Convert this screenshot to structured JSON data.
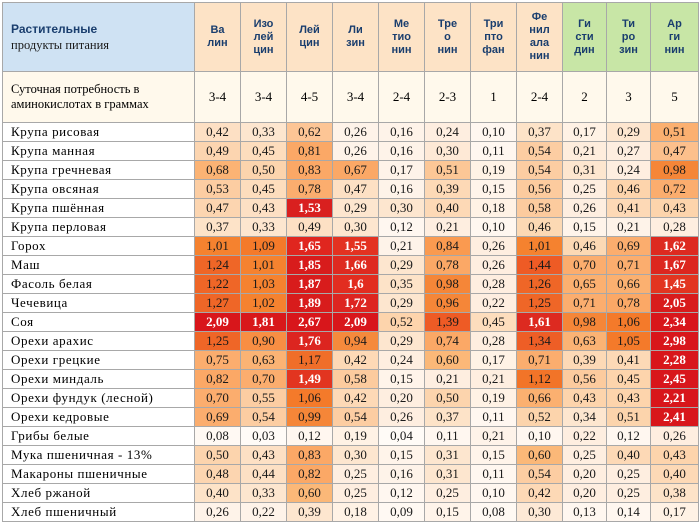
{
  "header": {
    "title_line1": "Растительные",
    "title_line2": "продукты питания",
    "columns": [
      {
        "name": "Ва лин",
        "lines": [
          "Ва",
          "лин"
        ],
        "bg": "#fde3c6"
      },
      {
        "name": "Изо лей цин",
        "lines": [
          "Изо",
          "лей",
          "цин"
        ],
        "bg": "#fde3c6"
      },
      {
        "name": "Лей цин",
        "lines": [
          "Лей",
          "цин"
        ],
        "bg": "#fde3c6"
      },
      {
        "name": "Ли зин",
        "lines": [
          "Ли",
          "зин"
        ],
        "bg": "#fde3c6"
      },
      {
        "name": "Ме тио нин",
        "lines": [
          "Ме",
          "тио",
          "нин"
        ],
        "bg": "#fde3c6"
      },
      {
        "name": "Тре о нин",
        "lines": [
          "Тре",
          "о",
          "нин"
        ],
        "bg": "#fde3c6"
      },
      {
        "name": "Три пто фан",
        "lines": [
          "Три",
          "пто",
          "фан"
        ],
        "bg": "#fde3c6"
      },
      {
        "name": "Фе нил ала нин",
        "lines": [
          "Фе",
          "нил",
          "ала",
          "нин"
        ],
        "bg": "#fde3c6"
      },
      {
        "name": "Ги сти дин",
        "lines": [
          "Ги",
          "сти",
          "дин"
        ],
        "bg": "#c8e6a6"
      },
      {
        "name": "Ти ро зин",
        "lines": [
          "Ти",
          "ро",
          "зин"
        ],
        "bg": "#c8e6a6"
      },
      {
        "name": "Ар ги нин",
        "lines": [
          "Ар",
          "ги",
          "нин"
        ],
        "bg": "#c8e6a6"
      }
    ]
  },
  "need": {
    "label": "Суточная потребность в аминокислотах в граммах",
    "values": [
      "3-4",
      "3-4",
      "4-5",
      "3-4",
      "2-4",
      "2-3",
      "1",
      "2-4",
      "2",
      "3",
      "5"
    ]
  },
  "rows": [
    {
      "name": "Крупа рисовая",
      "values": [
        "0,42",
        "0,33",
        "0,62",
        "0,26",
        "0,16",
        "0,24",
        "0,10",
        "0,37",
        "0,17",
        "0,29",
        "0,51"
      ],
      "colors": [
        "#fde0c4",
        "#fde6cf",
        "#fdc595",
        "#fef3e9",
        "#fef3e9",
        "#feeee0",
        "#fff7f0",
        "#fde3c8",
        "#fff2e5",
        "#fde6cf",
        "#fbb070"
      ]
    },
    {
      "name": "Крупа манная",
      "values": [
        "0,49",
        "0,45",
        "0,81",
        "0,26",
        "0,16",
        "0,30",
        "0,11",
        "0,54",
        "0,21",
        "0,27",
        "0,47"
      ],
      "colors": [
        "#fcd5b0",
        "#fdddbd",
        "#fba866",
        "#fef3e9",
        "#fef3e9",
        "#fee9d6",
        "#fff7f0",
        "#fccda2",
        "#feeddd",
        "#feeee0",
        "#fcc08c"
      ]
    },
    {
      "name": "Крупа гречневая",
      "values": [
        "0,68",
        "0,50",
        "0,83",
        "0,67",
        "0,17",
        "0,51",
        "0,19",
        "0,54",
        "0,31",
        "0,24",
        "0,98"
      ],
      "colors": [
        "#fbb374",
        "#fcd4ad",
        "#fba866",
        "#fba866",
        "#fef3e9",
        "#fcc796",
        "#fff2e5",
        "#fccda2",
        "#fde6cf",
        "#feeee0",
        "#f58638"
      ]
    },
    {
      "name": "Крупа овсяная",
      "values": [
        "0,53",
        "0,45",
        "0,78",
        "0,47",
        "0,16",
        "0,39",
        "0,15",
        "0,56",
        "0,25",
        "0,46",
        "0,72"
      ],
      "colors": [
        "#fccda2",
        "#fdddbd",
        "#fbad6e",
        "#fde0c4",
        "#fef3e9",
        "#fdd9b6",
        "#fff4ea",
        "#fccb9e",
        "#feeee0",
        "#fdd4ac",
        "#fbad6e"
      ]
    },
    {
      "name": "Крупа пшённая",
      "values": [
        "0,47",
        "0,43",
        "1,53",
        "0,29",
        "0,30",
        "0,40",
        "0,18",
        "0,58",
        "0,26",
        "0,41",
        "0,43"
      ],
      "colors": [
        "#fcd5b0",
        "#fde0c4",
        "#d9201f",
        "#fde6cf",
        "#fde6cf",
        "#fdd9b6",
        "#fff2e5",
        "#fccb9e",
        "#feeee0",
        "#fdd9b6",
        "#fdd4ac"
      ]
    },
    {
      "name": "Крупа перловая",
      "values": [
        "0,37",
        "0,33",
        "0,49",
        "0,30",
        "0,12",
        "0,21",
        "0,10",
        "0,46",
        "0,15",
        "0,21",
        "0,28"
      ],
      "colors": [
        "#fde3c8",
        "#fde6cf",
        "#fde0c4",
        "#fde6cf",
        "#fff7f0",
        "#feeee0",
        "#fff7f0",
        "#fcd9b4",
        "#fff4ea",
        "#fef3e9",
        "#feeee0"
      ]
    },
    {
      "name": "Горох",
      "values": [
        "1,01",
        "1,09",
        "1,65",
        "1,55",
        "0,21",
        "0,84",
        "0,26",
        "1,01",
        "0,46",
        "0,69",
        "1,62"
      ],
      "colors": [
        "#f5822f",
        "#f47a2a",
        "#e0261f",
        "#e33221",
        "#fef3e9",
        "#fa9a50",
        "#feeee0",
        "#f5822f",
        "#fcd9b4",
        "#fbad6e",
        "#dd2a20"
      ]
    },
    {
      "name": "Маш",
      "values": [
        "1,24",
        "1,01",
        "1,85",
        "1,66",
        "0,29",
        "0,78",
        "0,26",
        "1,44",
        "0,70",
        "0,71",
        "1,67"
      ],
      "colors": [
        "#ef6627",
        "#f5822f",
        "#d81c1c",
        "#de2a20",
        "#fde6cf",
        "#fba866",
        "#feeee0",
        "#ee5b25",
        "#fbad6e",
        "#fbad6e",
        "#dc261f"
      ]
    },
    {
      "name": "Фасоль белая",
      "values": [
        "1,22",
        "1,03",
        "1,87",
        "1,6",
        "0,35",
        "0,98",
        "0,28",
        "1,26",
        "0,65",
        "0,66",
        "1,45"
      ],
      "colors": [
        "#ef6627",
        "#f5822f",
        "#d81c1c",
        "#e22d20",
        "#fde3c8",
        "#f58638",
        "#feeee0",
        "#ef6627",
        "#fbb070",
        "#fbb070",
        "#e23520"
      ]
    },
    {
      "name": "Чечевица",
      "values": [
        "1,27",
        "1,02",
        "1,89",
        "1,72",
        "0,29",
        "0,96",
        "0,22",
        "1,25",
        "0,71",
        "0,78",
        "2,05"
      ],
      "colors": [
        "#ef6627",
        "#f5822f",
        "#d81c1c",
        "#dd2520",
        "#fde6cf",
        "#f58638",
        "#feeee0",
        "#ef6627",
        "#fbad6e",
        "#fba866",
        "#d81c1c"
      ]
    },
    {
      "name": "Соя",
      "values": [
        "2,09",
        "1,81",
        "2,67",
        "2,09",
        "0,52",
        "1,39",
        "0,45",
        "1,61",
        "0,98",
        "1,06",
        "2,34"
      ],
      "colors": [
        "#d8161b",
        "#d8181b",
        "#d8161b",
        "#d8161b",
        "#fdd4ac",
        "#ee5b25",
        "#fdddbd",
        "#dd2a20",
        "#f58638",
        "#f47a2a",
        "#d8161b"
      ]
    },
    {
      "name": "Орехи арахис",
      "values": [
        "1,25",
        "0,90",
        "1,76",
        "0,94",
        "0,29",
        "0,74",
        "0,28",
        "1,34",
        "0,63",
        "1,05",
        "2,98"
      ],
      "colors": [
        "#ef6627",
        "#f88e43",
        "#dc2520",
        "#f58a3c",
        "#fde6cf",
        "#fba866",
        "#feeee0",
        "#ee5e26",
        "#fbb374",
        "#f47a2a",
        "#d8161b"
      ]
    },
    {
      "name": "Орехи грецкие",
      "values": [
        "0,75",
        "0,63",
        "1,17",
        "0,42",
        "0,24",
        "0,60",
        "0,17",
        "0,71",
        "0,39",
        "0,41",
        "2,28"
      ],
      "colors": [
        "#fbad6e",
        "#fbb374",
        "#f06e29",
        "#fdd9b6",
        "#feeee0",
        "#fbb878",
        "#fff2e5",
        "#fbad6e",
        "#fdd9b6",
        "#fdd9b6",
        "#d8161b"
      ]
    },
    {
      "name": "Орехи миндаль",
      "values": [
        "0,82",
        "0,70",
        "1,49",
        "0,58",
        "0,15",
        "0,21",
        "0,21",
        "1,12",
        "0,56",
        "0,45",
        "2,45"
      ],
      "colors": [
        "#fba866",
        "#fbad6e",
        "#e23520",
        "#fccb9e",
        "#fff4ea",
        "#feeee0",
        "#feeee0",
        "#f27428",
        "#fccb9e",
        "#fdd4ac",
        "#d8161b"
      ]
    },
    {
      "name": "Орехи фундук (лесной)",
      "values": [
        "0,70",
        "0,55",
        "1,06",
        "0,42",
        "0,20",
        "0,50",
        "0,19",
        "0,66",
        "0,43",
        "0,43",
        "2,21"
      ],
      "colors": [
        "#fbad6e",
        "#fccda2",
        "#f47a2a",
        "#fdd9b6",
        "#feeee0",
        "#fcd4ad",
        "#fff2e5",
        "#fbb070",
        "#fdd4ac",
        "#fdd4ac",
        "#d8161b"
      ]
    },
    {
      "name": "Орехи кедровые",
      "values": [
        "0,69",
        "0,54",
        "0,99",
        "0,54",
        "0,26",
        "0,37",
        "0,11",
        "0,52",
        "0,34",
        "0,51",
        "2,41"
      ],
      "colors": [
        "#fbad6e",
        "#fccda2",
        "#f58638",
        "#fccda2",
        "#feeee0",
        "#fde3c8",
        "#fff7f0",
        "#fcd4ac",
        "#fde6cf",
        "#fcd4ac",
        "#d8161b"
      ]
    },
    {
      "name": "Грибы белые",
      "values": [
        "0,08",
        "0,03",
        "0,12",
        "0,19",
        "0,04",
        "0,11",
        "0,21",
        "0,10",
        "0,22",
        "0,12",
        "0,26"
      ],
      "colors": [
        "#fff9f3",
        "#fffbf7",
        "#fff7f0",
        "#fff2e5",
        "#fffbf7",
        "#fff7f0",
        "#fef3e9",
        "#fff7f0",
        "#feeee0",
        "#fff7f0",
        "#feeee0"
      ]
    },
    {
      "name": "Мука пшеничная - 13%",
      "values": [
        "0,50",
        "0,43",
        "0,83",
        "0,30",
        "0,15",
        "0,31",
        "0,15",
        "0,60",
        "0,25",
        "0,40",
        "0,43"
      ],
      "colors": [
        "#fcd4ad",
        "#fde0c4",
        "#fba866",
        "#fde6cf",
        "#fff4ea",
        "#fde6cf",
        "#fff4ea",
        "#fbb878",
        "#feeee0",
        "#fdd9b6",
        "#fdd4ac"
      ]
    },
    {
      "name": "Макароны пшеничные",
      "values": [
        "0,48",
        "0,44",
        "0,82",
        "0,25",
        "0,16",
        "0,31",
        "0,11",
        "0,54",
        "0,20",
        "0,25",
        "0,40"
      ],
      "colors": [
        "#fcd5b0",
        "#fde0c4",
        "#fba866",
        "#feeee0",
        "#fef3e9",
        "#fde6cf",
        "#fff7f0",
        "#fccda2",
        "#feeee0",
        "#feeee0",
        "#fdd9b6"
      ]
    },
    {
      "name": "Хлеб ржаной",
      "values": [
        "0,40",
        "0,33",
        "0,60",
        "0,25",
        "0,12",
        "0,25",
        "0,10",
        "0,42",
        "0,20",
        "0,25",
        "0,38"
      ],
      "colors": [
        "#fde3c8",
        "#fde6cf",
        "#fbb878",
        "#feeee0",
        "#fff7f0",
        "#feeee0",
        "#fff7f0",
        "#fdd9b6",
        "#feeee0",
        "#feeee0",
        "#fde3c8"
      ]
    },
    {
      "name": "Хлеб пшеничный",
      "values": [
        "0,26",
        "0,22",
        "0,39",
        "0,18",
        "0,09",
        "0,15",
        "0,08",
        "0,30",
        "0,13",
        "0,14",
        "0,17"
      ],
      "colors": [
        "#fef3e9",
        "#fef3e9",
        "#fde6cf",
        "#fff2e5",
        "#fff9f3",
        "#fff4ea",
        "#fff9f3",
        "#fde9d6",
        "#fff7f0",
        "#fff7f0",
        "#fff2e5"
      ]
    }
  ]
}
